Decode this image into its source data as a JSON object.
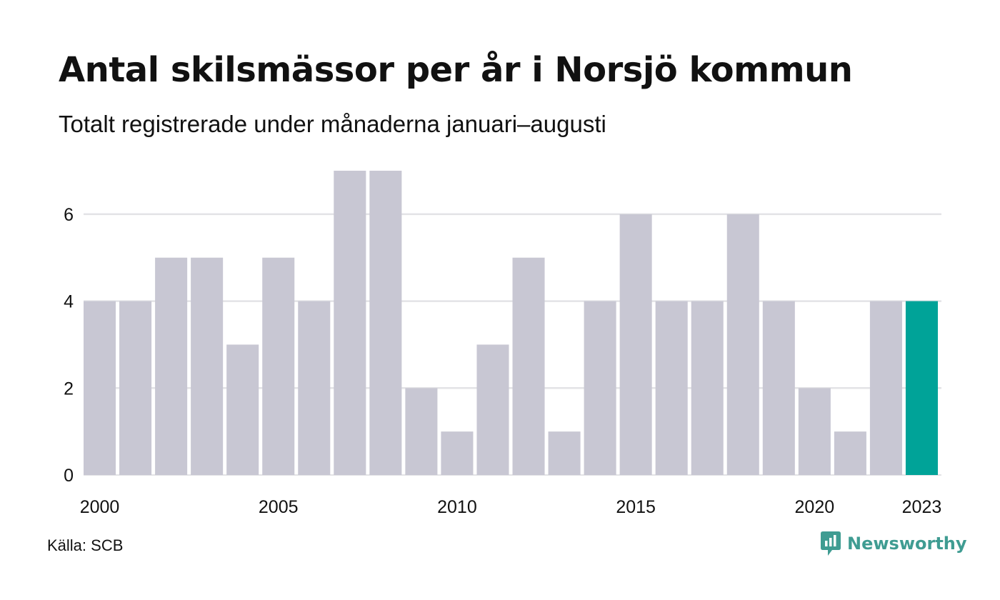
{
  "header": {
    "title": "Antal skilsmässor per år i Norsjö kommun",
    "subtitle": "Totalt registrerade under månaderna januari–augusti"
  },
  "footer": {
    "source": "Källa: SCB",
    "brand": "Newsworthy",
    "brand_icon": "newsworthy-logo-icon"
  },
  "colors": {
    "bar": "#c8c7d3",
    "highlight": "#00a398",
    "grid": "#e3e3e6",
    "text": "#111111",
    "brand": "#3f9c92"
  },
  "chart_data": {
    "type": "bar",
    "x": [
      2000,
      2001,
      2002,
      2003,
      2004,
      2005,
      2006,
      2007,
      2008,
      2009,
      2010,
      2011,
      2012,
      2013,
      2014,
      2015,
      2016,
      2017,
      2018,
      2019,
      2020,
      2021,
      2022,
      2023
    ],
    "values": [
      4,
      4,
      5,
      5,
      3,
      5,
      4,
      7,
      7,
      2,
      1,
      3,
      5,
      1,
      4,
      6,
      4,
      4,
      6,
      4,
      2,
      1,
      4,
      4
    ],
    "highlight_x": 2023,
    "ylim": [
      0,
      7
    ],
    "yticks": [
      0,
      2,
      4,
      6
    ],
    "xticks": [
      2000,
      2005,
      2010,
      2015,
      2020,
      2023
    ],
    "grid": true,
    "legend": "none"
  }
}
